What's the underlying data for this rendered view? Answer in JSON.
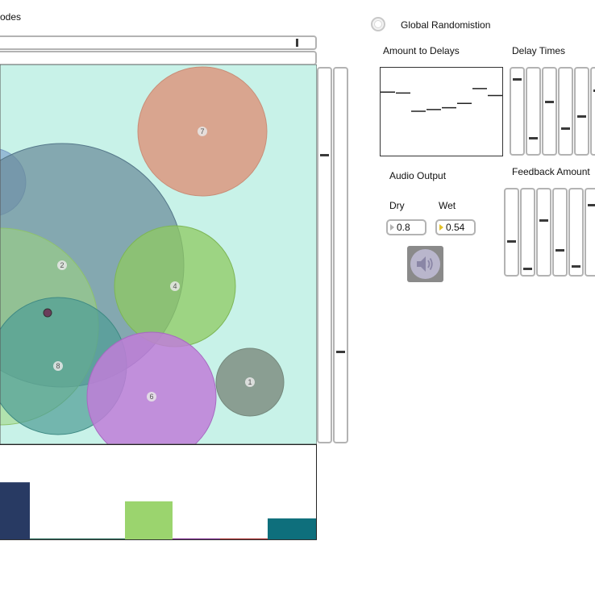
{
  "window": {
    "title_fragment": "odes"
  },
  "global_randomisation": {
    "label": "Global Randomistion",
    "checked": false
  },
  "amount_to_delays": {
    "label": "Amount to Delays",
    "steps": [
      0.72,
      0.71,
      0.5,
      0.52,
      0.54,
      0.59,
      0.76,
      0.68
    ]
  },
  "delay_times": {
    "label": "Delay Times",
    "values": [
      0.88,
      0.17,
      0.61,
      0.29,
      0.44,
      0.75
    ]
  },
  "feedback_amount": {
    "label": "Feedback Amount",
    "values": [
      0.39,
      0.06,
      0.64,
      0.28,
      0.09,
      0.83
    ]
  },
  "audio_output": {
    "label": "Audio Output",
    "dry_label": "Dry",
    "wet_label": "Wet",
    "dry_value": "0.8",
    "wet_value": "0.54"
  },
  "speaker_icon": "speaker-icon",
  "top_slider": {
    "value": 0.95
  },
  "side_sliders": {
    "left": 0.77,
    "right": 0.24
  },
  "nodes": [
    {
      "label": "7",
      "color": "#d9a58f"
    },
    {
      "label": "2",
      "color": "#8aa0a8"
    },
    {
      "label": "4",
      "color": "#9fcf7e"
    },
    {
      "label": "8",
      "color": "#5aa39b"
    },
    {
      "label": "6",
      "color": "#c07ed8"
    },
    {
      "label": "1",
      "color": "#8a9e92"
    }
  ],
  "colors": {
    "canvas_background": "#c8f2e8"
  },
  "bars": [
    {
      "value": 0.6,
      "color": "#283a63"
    },
    {
      "value": 0.01,
      "color": "#2a6a5a"
    },
    {
      "value": 0.4,
      "color": "#9bd46e"
    },
    {
      "value": 0.01,
      "color": "#7a2a8a"
    },
    {
      "value": 0.01,
      "color": "#a83030"
    },
    {
      "value": 0.22,
      "color": "#0e6f7c"
    }
  ]
}
